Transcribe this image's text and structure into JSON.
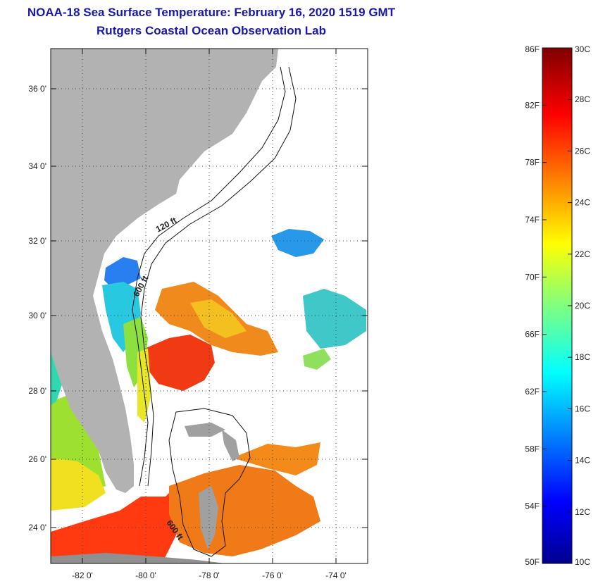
{
  "title": {
    "line1": "NOAA-18 Sea Surface Temperature:  February 16, 2020 1519 GMT",
    "line2": "Rutgers Coastal Ocean Observation Lab"
  },
  "map": {
    "lat_range": [
      23,
      37.2
    ],
    "lon_range": [
      -83,
      -73
    ],
    "lat_ticks": [
      {
        "value": 24,
        "label": "24 0'"
      },
      {
        "value": 26,
        "label": "26 0'"
      },
      {
        "value": 28,
        "label": "28 0'"
      },
      {
        "value": 30,
        "label": "30 0'"
      },
      {
        "value": 32,
        "label": "32 0'"
      },
      {
        "value": 34,
        "label": "34 0'"
      },
      {
        "value": 36,
        "label": "36 0'"
      }
    ],
    "lon_ticks": [
      {
        "value": -82,
        "label": "-82 0'"
      },
      {
        "value": -80,
        "label": "-80 0'"
      },
      {
        "value": -78,
        "label": "-78 0'"
      },
      {
        "value": -76,
        "label": "-76 0'"
      },
      {
        "value": -74,
        "label": "-74 0'"
      }
    ],
    "contour_labels": [
      {
        "text": "120 ft"
      },
      {
        "text": "600 ft"
      },
      {
        "text": "600 ft"
      }
    ],
    "colors": {
      "land": "#b2b2b2",
      "ocean": "#ffffff",
      "grid": "#444444"
    }
  },
  "colorbar": {
    "min_c": 10,
    "max_c": 30,
    "fahrenheit_labels": [
      "86F",
      "82F",
      "78F",
      "74F",
      "70F",
      "66F",
      "62F",
      "58F",
      "54F",
      "50F"
    ],
    "celsius_labels": [
      "30C",
      "28C",
      "26C",
      "24C",
      "22C",
      "20C",
      "18C",
      "16C",
      "14C",
      "12C",
      "10C"
    ],
    "colormap": "jet"
  }
}
